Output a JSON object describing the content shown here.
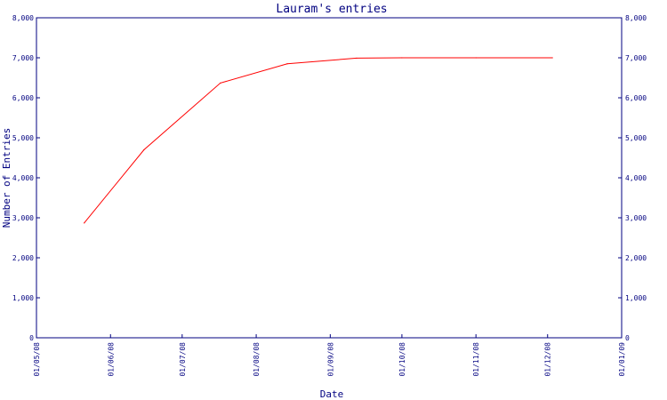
{
  "chart_data": {
    "type": "line",
    "title": "Lauram's entries",
    "xlabel": "Date",
    "ylabel": "Number of Entries",
    "x_tick_labels": [
      "01/05/08",
      "01/06/08",
      "01/07/08",
      "01/08/08",
      "01/09/08",
      "01/10/08",
      "01/11/08",
      "01/12/08",
      "01/01/09"
    ],
    "y_tick_labels": [
      "0",
      "1,000",
      "2,000",
      "3,000",
      "4,000",
      "5,000",
      "6,000",
      "7,000",
      "8,000"
    ],
    "y_tick_values": [
      0,
      1000,
      2000,
      3000,
      4000,
      5000,
      6000,
      7000,
      8000
    ],
    "ylim": [
      0,
      8000
    ],
    "grid": false,
    "series": [
      {
        "color": "#ff0000",
        "points": [
          {
            "x": "2008-05-21",
            "y": 2870
          },
          {
            "x": "2008-06-15",
            "y": 4700
          },
          {
            "x": "2008-07-17",
            "y": 6370
          },
          {
            "x": "2008-08-14",
            "y": 6850
          },
          {
            "x": "2008-09-12",
            "y": 6990
          },
          {
            "x": "2008-10-01",
            "y": 7000
          },
          {
            "x": "2008-11-01",
            "y": 7000
          },
          {
            "x": "2008-12-03",
            "y": 7000
          }
        ]
      }
    ]
  },
  "colors": {
    "axis": "#000080",
    "text": "#000080",
    "line": "#ff0000"
  }
}
